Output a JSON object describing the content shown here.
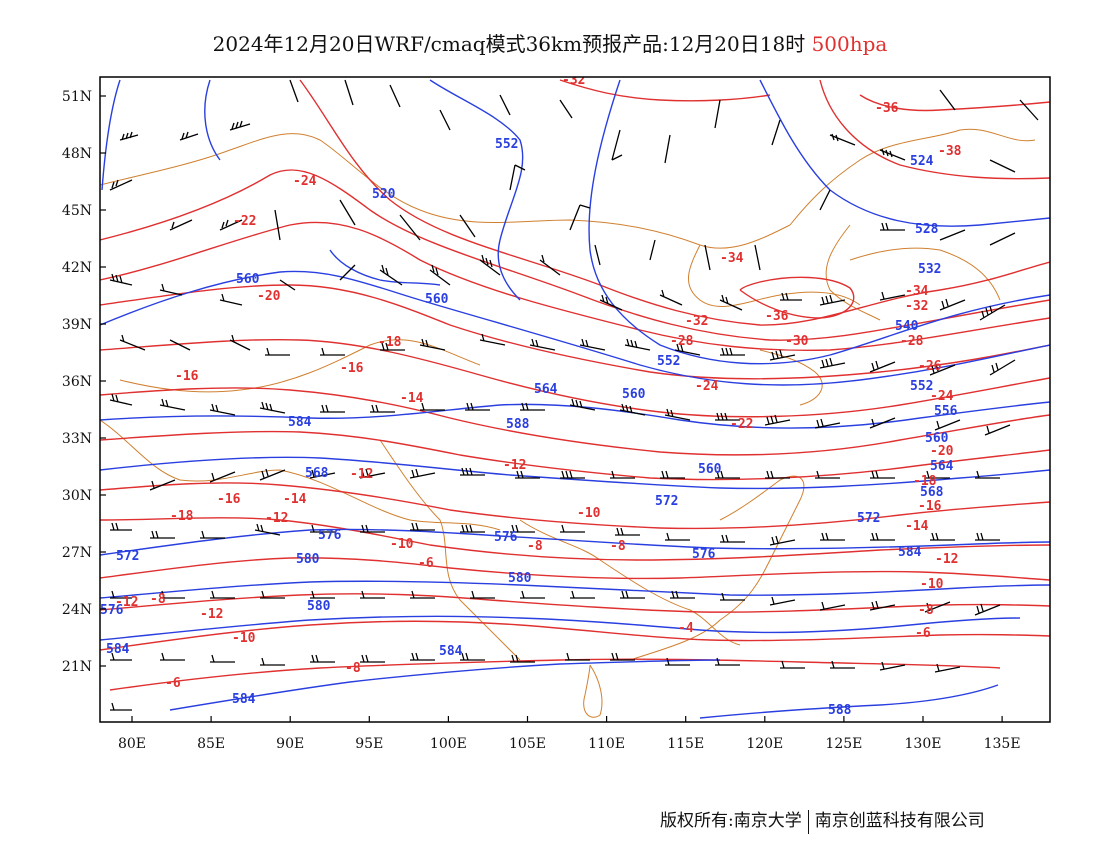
{
  "title": {
    "main": "2024年12月20日WRF/cmaq模式36km预报产品:12月20日18时",
    "level": "500hpa"
  },
  "footer": {
    "left": "版权所有:南京大学",
    "right": "南京创蓝科技有限公司"
  },
  "axes": {
    "lon_labels": [
      "80E",
      "85E",
      "90E",
      "95E",
      "100E",
      "105E",
      "110E",
      "115E",
      "120E",
      "125E",
      "130E",
      "135E"
    ],
    "lat_labels": [
      "51N",
      "48N",
      "45N",
      "42N",
      "39N",
      "36N",
      "33N",
      "30N",
      "27N",
      "24N",
      "21N"
    ]
  },
  "colors": {
    "temperature": "#e03030",
    "height": "#2a3fe0",
    "border": "#d08030",
    "wind": "#000000"
  },
  "temperature_labels": [
    "-32",
    "-36",
    "-38",
    "-24",
    "-22",
    "-34",
    "-20",
    "-32",
    "-36",
    "-34",
    "-32",
    "-18",
    "-28",
    "-30",
    "-28",
    "-16",
    "-16",
    "-24",
    "-26",
    "-24",
    "-14",
    "-22",
    "-20",
    "-12",
    "-18",
    "-16",
    "-14",
    "-10",
    "-12",
    "-16",
    "-18",
    "-12",
    "-10",
    "-8",
    "-6",
    "-8",
    "-12",
    "-14",
    "-12",
    "-8",
    "-12",
    "-10",
    "-10",
    "-8",
    "-4",
    "-6",
    "-6",
    "-8"
  ],
  "height_labels": [
    "552",
    "520",
    "524",
    "528",
    "560",
    "560",
    "532",
    "540",
    "552",
    "552",
    "556",
    "560",
    "564",
    "560",
    "584",
    "588",
    "560",
    "564",
    "568",
    "568",
    "572",
    "572",
    "576",
    "572",
    "576",
    "580",
    "576",
    "580",
    "584",
    "580",
    "584",
    "584",
    "588",
    "584",
    "576"
  ]
}
